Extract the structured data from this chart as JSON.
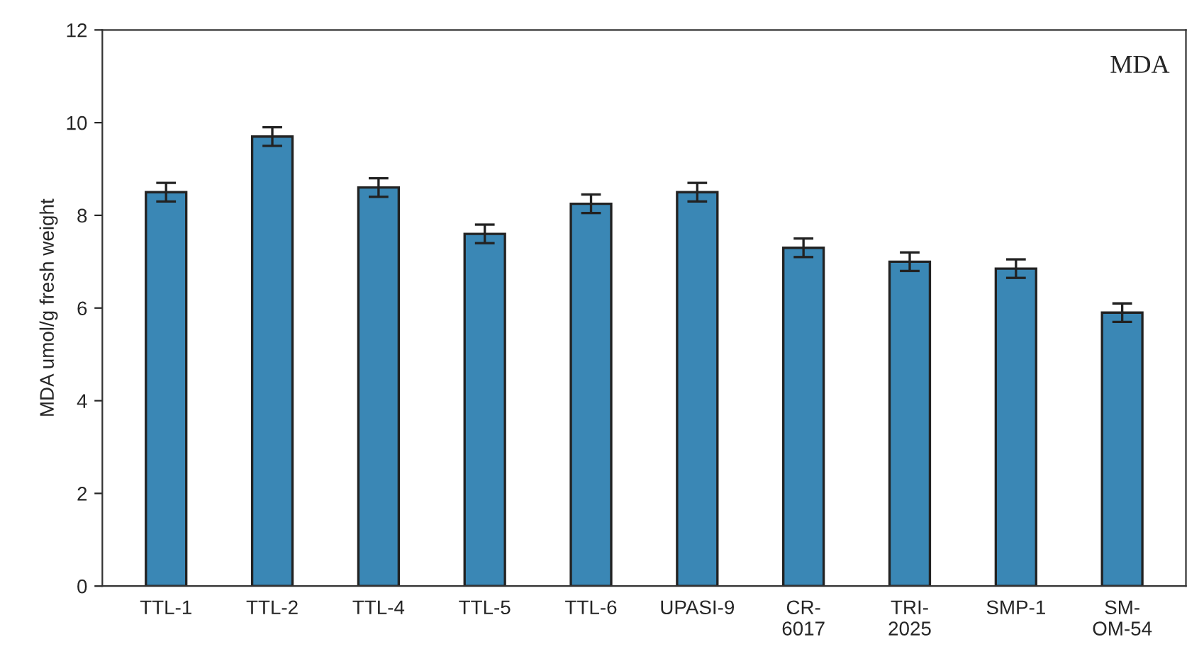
{
  "chart_data": {
    "type": "bar",
    "title": "MDA",
    "ylabel": "MDA umol/g fresh weight",
    "categories": [
      "TTL-1",
      "TTL-2",
      "TTL-4",
      "TTL-5",
      "TTL-6",
      "UPASI-9",
      "CR-\n6017",
      "TRI-\n2025",
      "SMP-1",
      "SM-\nOM-54"
    ],
    "values": [
      8.5,
      9.7,
      8.6,
      7.6,
      8.25,
      8.5,
      7.3,
      7.0,
      6.85,
      5.9
    ],
    "errors": [
      0.2,
      0.2,
      0.2,
      0.2,
      0.2,
      0.2,
      0.2,
      0.2,
      0.2,
      0.2
    ],
    "color": "#3a87b5",
    "ylim": [
      0,
      12
    ],
    "yticks": [
      0,
      2,
      4,
      6,
      8,
      10,
      12
    ],
    "grid": false,
    "legend": false
  }
}
